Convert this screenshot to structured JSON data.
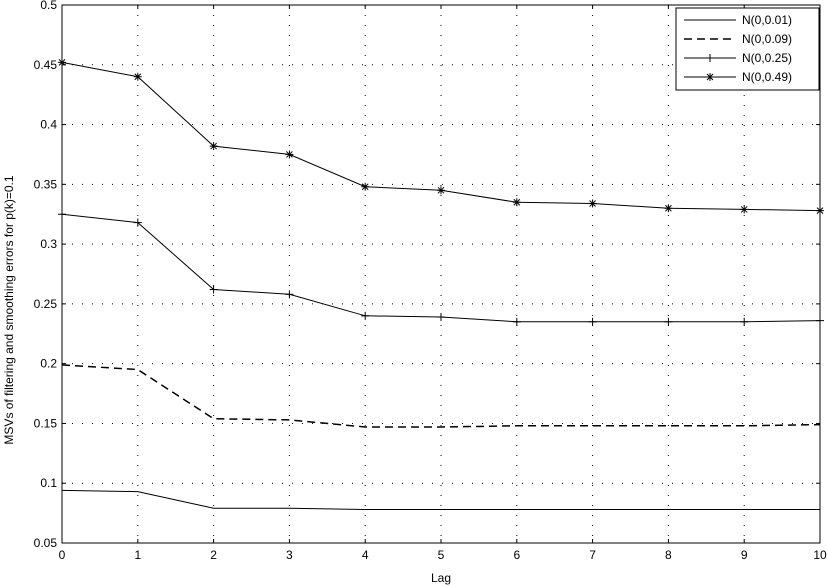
{
  "chart_data": {
    "type": "line",
    "title": "",
    "xlabel": "Lag",
    "ylabel": "MSVs of filtering and smoothing errors for p(k)=0.1",
    "xlim": [
      0,
      10
    ],
    "ylim": [
      0.05,
      0.5
    ],
    "x_ticks": [
      "0",
      "1",
      "2",
      "3",
      "4",
      "5",
      "6",
      "7",
      "8",
      "9",
      "10"
    ],
    "y_ticks": [
      "0.05",
      "0.1",
      "0.15",
      "0.2",
      "0.25",
      "0.3",
      "0.35",
      "0.4",
      "0.45",
      "0.5"
    ],
    "grid": true,
    "legend_position": "top-right",
    "x": [
      0,
      1,
      2,
      3,
      4,
      5,
      6,
      7,
      8,
      9,
      10
    ],
    "series": [
      {
        "name": "N(0,0.01)",
        "line_style": "solid",
        "marker": "none",
        "values": [
          0.094,
          0.093,
          0.079,
          0.079,
          0.078,
          0.078,
          0.078,
          0.078,
          0.078,
          0.078,
          0.078
        ]
      },
      {
        "name": "N(0,0.09)",
        "line_style": "dashed",
        "marker": "none",
        "values": [
          0.199,
          0.195,
          0.154,
          0.153,
          0.147,
          0.147,
          0.148,
          0.148,
          0.148,
          0.148,
          0.149
        ]
      },
      {
        "name": "N(0,0.25)",
        "line_style": "solid",
        "marker": "plus",
        "values": [
          0.325,
          0.318,
          0.262,
          0.258,
          0.24,
          0.239,
          0.235,
          0.235,
          0.235,
          0.235,
          0.236
        ]
      },
      {
        "name": "N(0,0.49)",
        "line_style": "solid",
        "marker": "star",
        "values": [
          0.452,
          0.44,
          0.382,
          0.375,
          0.348,
          0.345,
          0.335,
          0.334,
          0.33,
          0.329,
          0.328
        ]
      }
    ]
  }
}
